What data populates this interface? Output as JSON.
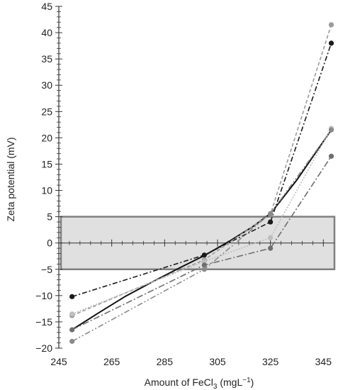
{
  "chart_data": {
    "type": "line",
    "xlabel": "Amount of FeCl",
    "xlabel_sub": "3",
    "xlabel_unit": " (mgL",
    "xlabel_sup": "−1",
    "xlabel_close": ")",
    "ylabel": "Zeta potential (mV)",
    "xlim": [
      245,
      350
    ],
    "ylim": [
      -20,
      45
    ],
    "xticks": [
      "245",
      "265",
      "285",
      "305",
      "325",
      "345"
    ],
    "yticks": [
      "−20",
      "−15",
      "−10",
      "−5",
      "0",
      "5",
      "10",
      "15",
      "20",
      "25",
      "30",
      "35",
      "40",
      "45"
    ],
    "xtick_values": [
      245,
      265,
      285,
      305,
      325,
      345
    ],
    "ytick_values": [
      -20,
      -15,
      -10,
      -5,
      0,
      5,
      10,
      15,
      20,
      25,
      30,
      35,
      40,
      45
    ],
    "band": {
      "y_low": -5,
      "y_high": 5,
      "fill": "#e0e0e0",
      "stroke": "#808080"
    },
    "grid": false,
    "x": [
      250,
      300,
      325,
      348
    ],
    "series": [
      {
        "values": [
          -10.2,
          -2.3,
          4.0,
          38.0
        ],
        "color": "#1a1a1a",
        "dash": "7,3,2,3",
        "width": 1.6
      },
      {
        "values": [
          -13.8,
          -3.2,
          5.5,
          41.5
        ],
        "color": "#9a9a9a",
        "dash": "5,3",
        "width": 1.6
      },
      {
        "values": [
          -13.5,
          -3.5,
          1.0,
          21.8
        ],
        "color": "#bdbdbd",
        "dash": "2,2",
        "width": 1.6
      },
      {
        "values": [
          -16.5,
          -4.2,
          -1.0,
          16.5
        ],
        "color": "#6e6e6e",
        "dash": "9,3,2,3",
        "width": 1.6
      },
      {
        "values": [
          -18.7,
          -5.0,
          5.6,
          21.5
        ],
        "color": "#8a8a8a",
        "dash": "8,3,2,3,2,3",
        "width": 1.6
      }
    ],
    "trend": {
      "x": [
        250,
        260,
        270,
        280,
        290,
        300,
        310,
        318,
        325,
        335,
        348
      ],
      "y": [
        -16.5,
        -13.3,
        -10.2,
        -7.5,
        -4.9,
        -2.4,
        0.5,
        3.0,
        5.6,
        12.0,
        21.5
      ],
      "color": "#111111",
      "width": 2
    }
  }
}
